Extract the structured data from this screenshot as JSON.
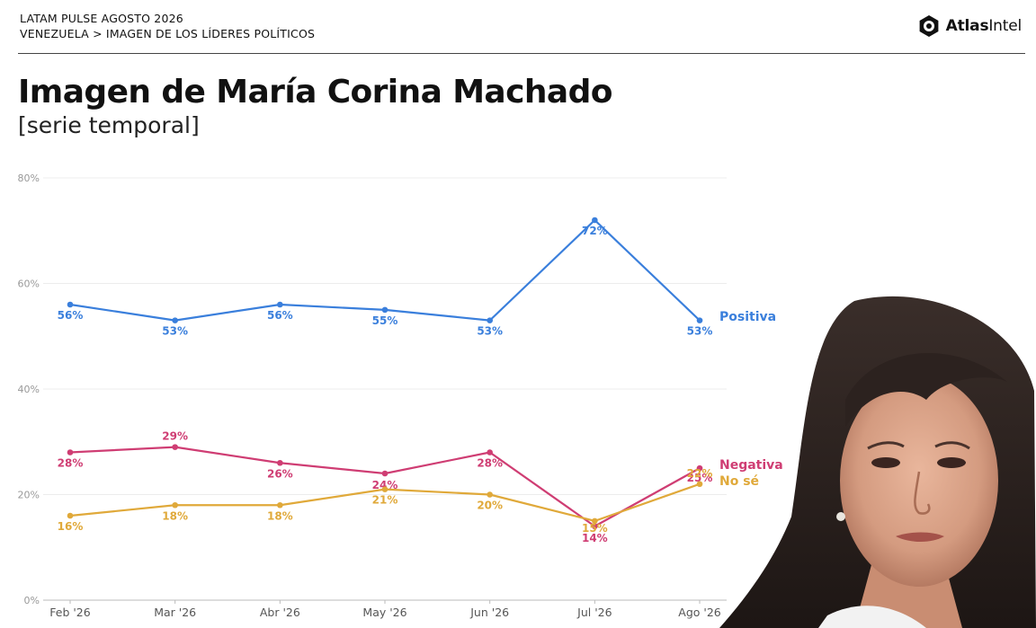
{
  "header": {
    "line1": "LATAM PULSE AGOSTO 2026",
    "line2": "VENEZUELA > IMAGEN DE LOS LÍDERES POLÍTICOS"
  },
  "logo": {
    "bold": "Atlas",
    "regular": "Intel",
    "icon": "atlasintel-logo-icon"
  },
  "title": "Imagen de María Corina Machado",
  "subtitle": "[serie temporal]",
  "colors": {
    "positiva": "#3a7fdc",
    "negativa": "#cf3d73",
    "nose": "#e0a93a",
    "grid": "#ececec",
    "axis": "#999999"
  },
  "photo": {
    "icon": "portrait-photo"
  },
  "chart_data": {
    "type": "line",
    "categories": [
      "Feb '26",
      "Mar '26",
      "Abr '26",
      "May '26",
      "Jun '26",
      "Jul '26",
      "Ago '26"
    ],
    "ylim": [
      0,
      80
    ],
    "yticks": [
      "0%",
      "20%",
      "40%",
      "60%",
      "80%"
    ],
    "grid": true,
    "series": [
      {
        "name": "Positiva",
        "color": "#3a7fdc",
        "values": [
          56,
          53,
          56,
          55,
          53,
          72,
          53
        ],
        "labels": [
          "56%",
          "53%",
          "56%",
          "55%",
          "53%",
          "72%",
          "53%"
        ]
      },
      {
        "name": "Negativa",
        "color": "#cf3d73",
        "values": [
          28,
          29,
          26,
          24,
          28,
          14,
          25
        ],
        "labels": [
          "28%",
          "29%",
          "26%",
          "24%",
          "28%",
          "14%",
          "25%"
        ]
      },
      {
        "name": "No sé",
        "color": "#e0a93a",
        "values": [
          16,
          18,
          18,
          21,
          20,
          15,
          22
        ],
        "labels": [
          "16%",
          "18%",
          "18%",
          "21%",
          "20%",
          "15%",
          "22%"
        ]
      }
    ]
  }
}
